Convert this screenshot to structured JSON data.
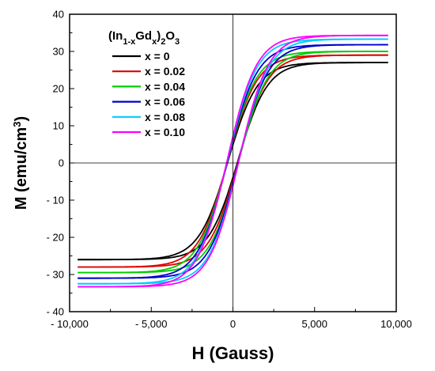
{
  "chart_data": {
    "type": "line",
    "title": "",
    "xlabel": "H (Gauss)",
    "ylabel": "M (emu/cm3)",
    "ylabel_parts": {
      "main": "M (emu/cm",
      "sup": "3",
      "close": ")"
    },
    "xlim": [
      -10000,
      10000
    ],
    "ylim": [
      -40,
      40
    ],
    "x_ticks": [
      -10000,
      -5000,
      0,
      5000,
      10000
    ],
    "x_tick_labels": [
      "- 10,000",
      "- 5,000",
      "0",
      "5,000",
      "10,000"
    ],
    "y_ticks": [
      -40,
      -30,
      -20,
      -10,
      0,
      10,
      20,
      30,
      40
    ],
    "y_tick_labels": [
      "- 40",
      "- 30",
      "- 20",
      "- 10",
      "0",
      "10",
      "20",
      "30",
      "40"
    ],
    "reference_lines": {
      "x": 0,
      "y": 0
    },
    "grid": false,
    "legend": {
      "placement": "top-left",
      "title_parts": [
        {
          "text": "(In",
          "shift": ""
        },
        {
          "text": "1-x",
          "shift": "sub"
        },
        {
          "text": "Gd",
          "shift": ""
        },
        {
          "text": "x",
          "shift": "sub"
        },
        {
          "text": ")",
          "shift": ""
        },
        {
          "text": "2",
          "shift": "sub"
        },
        {
          "text": "O",
          "shift": ""
        },
        {
          "text": "3",
          "shift": "sub"
        }
      ]
    },
    "x_range_plotted": [
      -9500,
      9500
    ],
    "series": [
      {
        "name": "x = 0",
        "color": "#000000",
        "ms": 27.0,
        "mneg": -26.0,
        "hc": 300,
        "width": 1800
      },
      {
        "name": "x = 0.02",
        "color": "#e00000",
        "ms": 29.0,
        "mneg": -28.0,
        "hc": 320,
        "width": 1800
      },
      {
        "name": "x = 0.04",
        "color": "#00cc00",
        "ms": 30.0,
        "mneg": -29.5,
        "hc": 340,
        "width": 1800
      },
      {
        "name": "x = 0.06",
        "color": "#0000cc",
        "ms": 31.8,
        "mneg": -31.0,
        "hc": 330,
        "width": 1800
      },
      {
        "name": "x = 0.08",
        "color": "#00ccff",
        "ms": 33.3,
        "mneg": -32.5,
        "hc": 350,
        "width": 1800
      },
      {
        "name": "x = 0.10",
        "color": "#ff00ff",
        "ms": 34.3,
        "mneg": -33.3,
        "hc": 360,
        "width": 1800
      }
    ]
  }
}
